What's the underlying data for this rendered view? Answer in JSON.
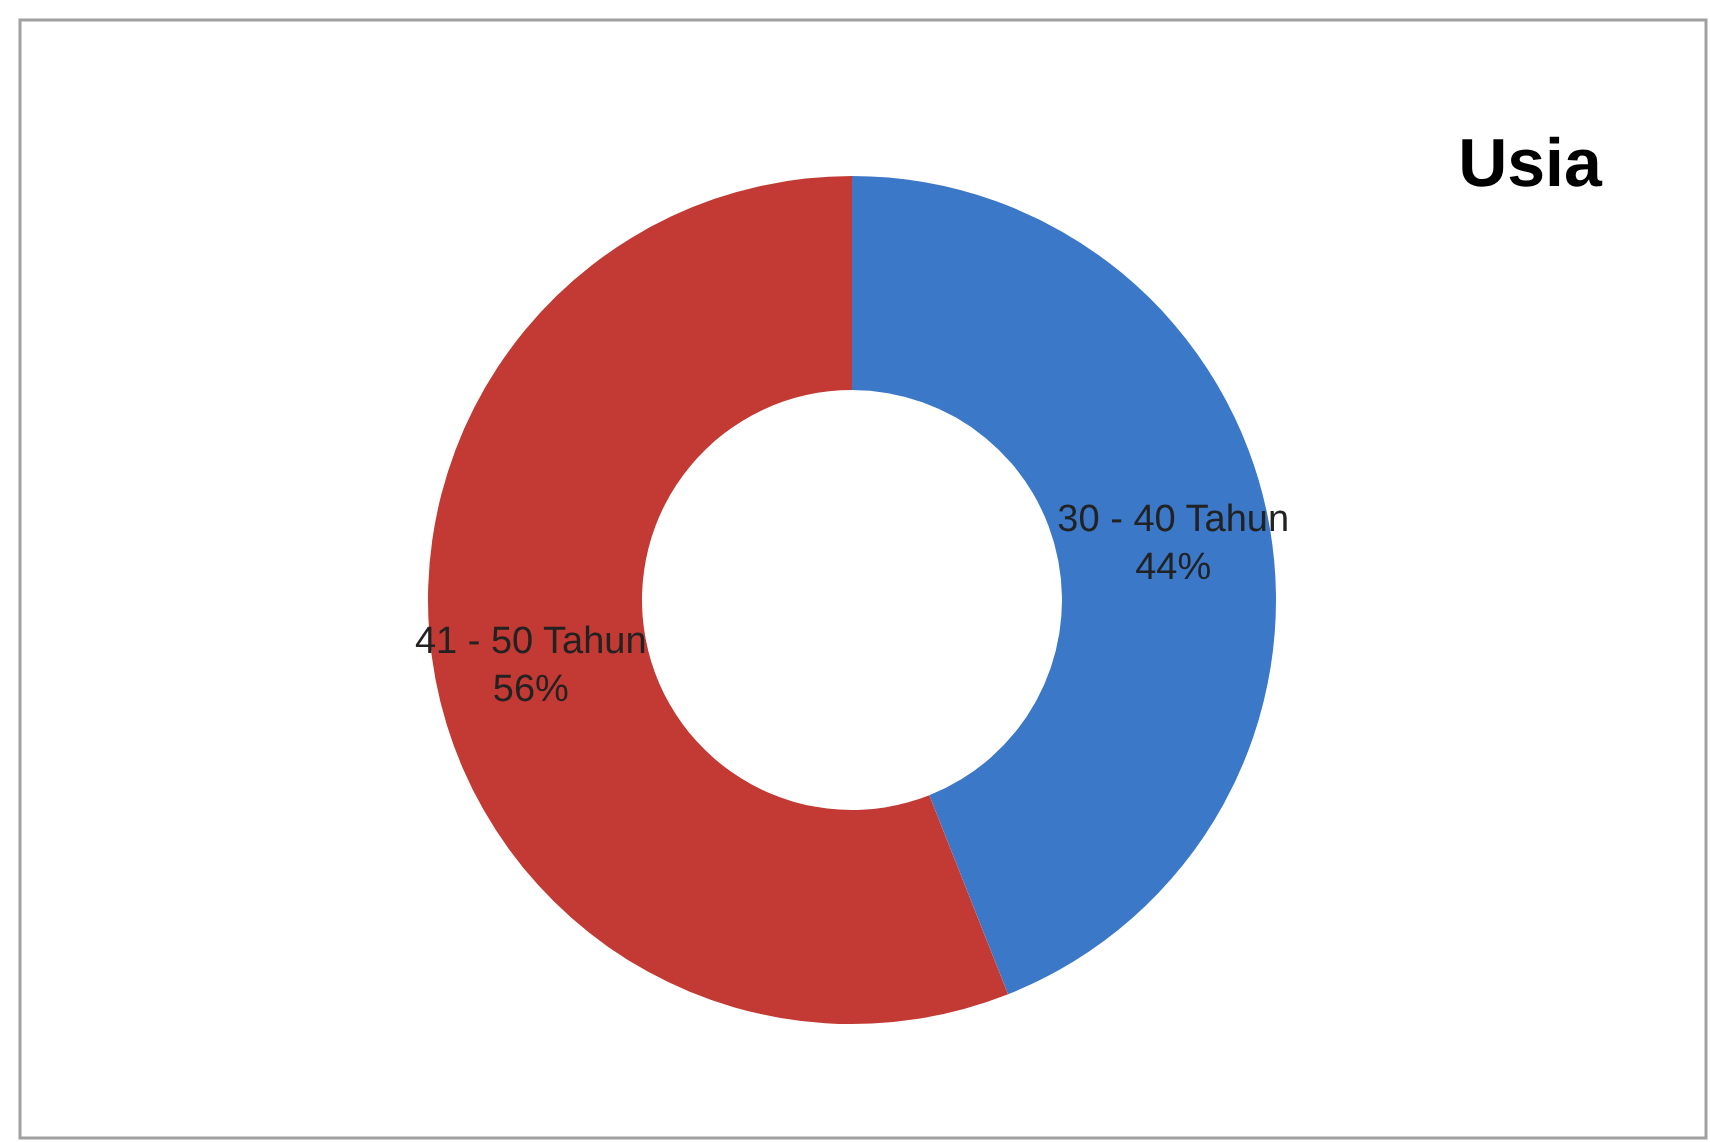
{
  "chart_data": {
    "type": "donut",
    "title": "Usia",
    "categories": [
      "30 - 40 Tahun",
      "41 - 50 Tahun"
    ],
    "values": [
      44,
      56
    ],
    "colors": [
      "#3b78c8",
      "#c23a33"
    ],
    "value_labels": [
      "44%",
      "56%"
    ]
  }
}
